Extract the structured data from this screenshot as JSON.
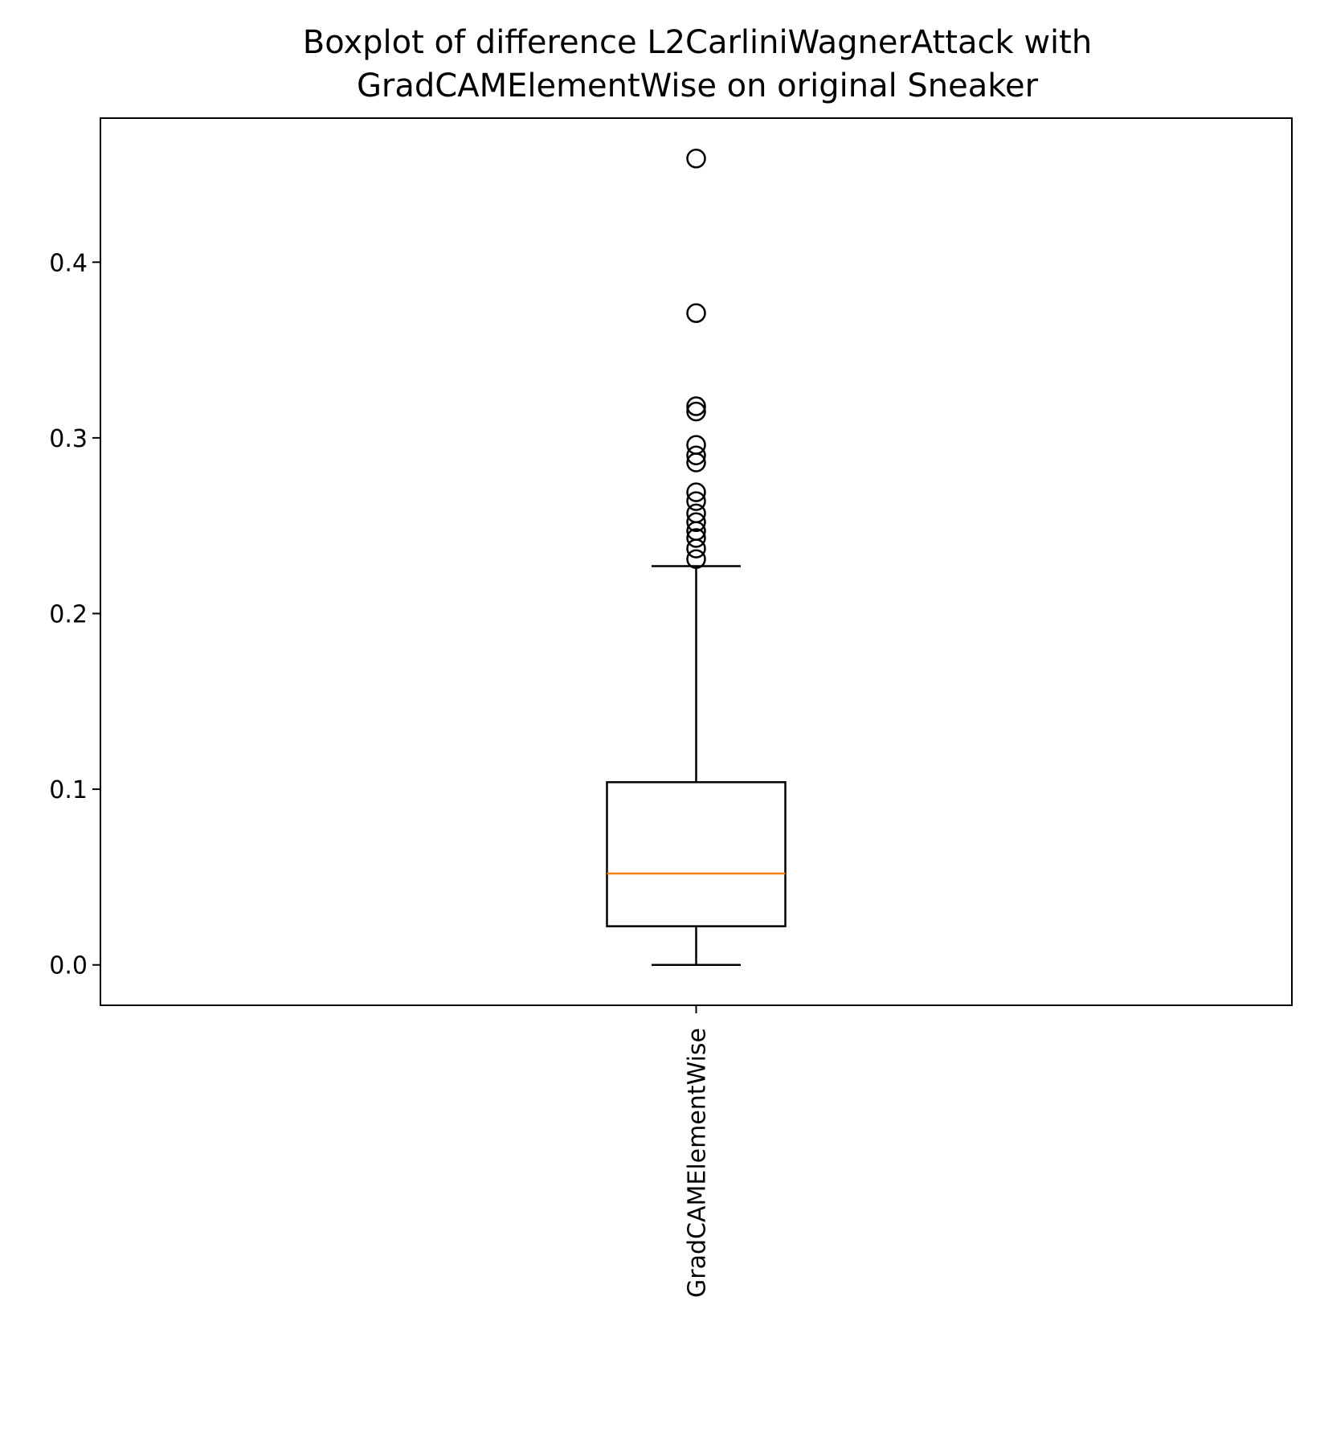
{
  "chart_data": {
    "type": "boxplot",
    "title_lines": [
      "Boxplot of difference L2CarliniWagnerAttack with",
      "GradCAMElementWise on original Sneaker"
    ],
    "xlabel": "",
    "ylabel": "",
    "ylim": [
      -0.023,
      0.482
    ],
    "yticks": [
      0.0,
      0.1,
      0.2,
      0.3,
      0.4
    ],
    "ytick_labels": [
      "0.0",
      "0.1",
      "0.2",
      "0.3",
      "0.4"
    ],
    "categories": [
      "GradCAMElementWise"
    ],
    "boxes": [
      {
        "category": "GradCAMElementWise",
        "whisker_low": 0.0,
        "q1": 0.022,
        "median": 0.052,
        "q3": 0.104,
        "whisker_high": 0.227,
        "outliers": [
          0.459,
          0.371,
          0.318,
          0.315,
          0.296,
          0.29,
          0.286,
          0.269,
          0.264,
          0.257,
          0.252,
          0.247,
          0.243,
          0.237,
          0.231
        ]
      }
    ],
    "colors": {
      "box": "#000000",
      "median": "#ff7f0e",
      "outlier": "#000000"
    },
    "grid": false,
    "legend": "none"
  }
}
